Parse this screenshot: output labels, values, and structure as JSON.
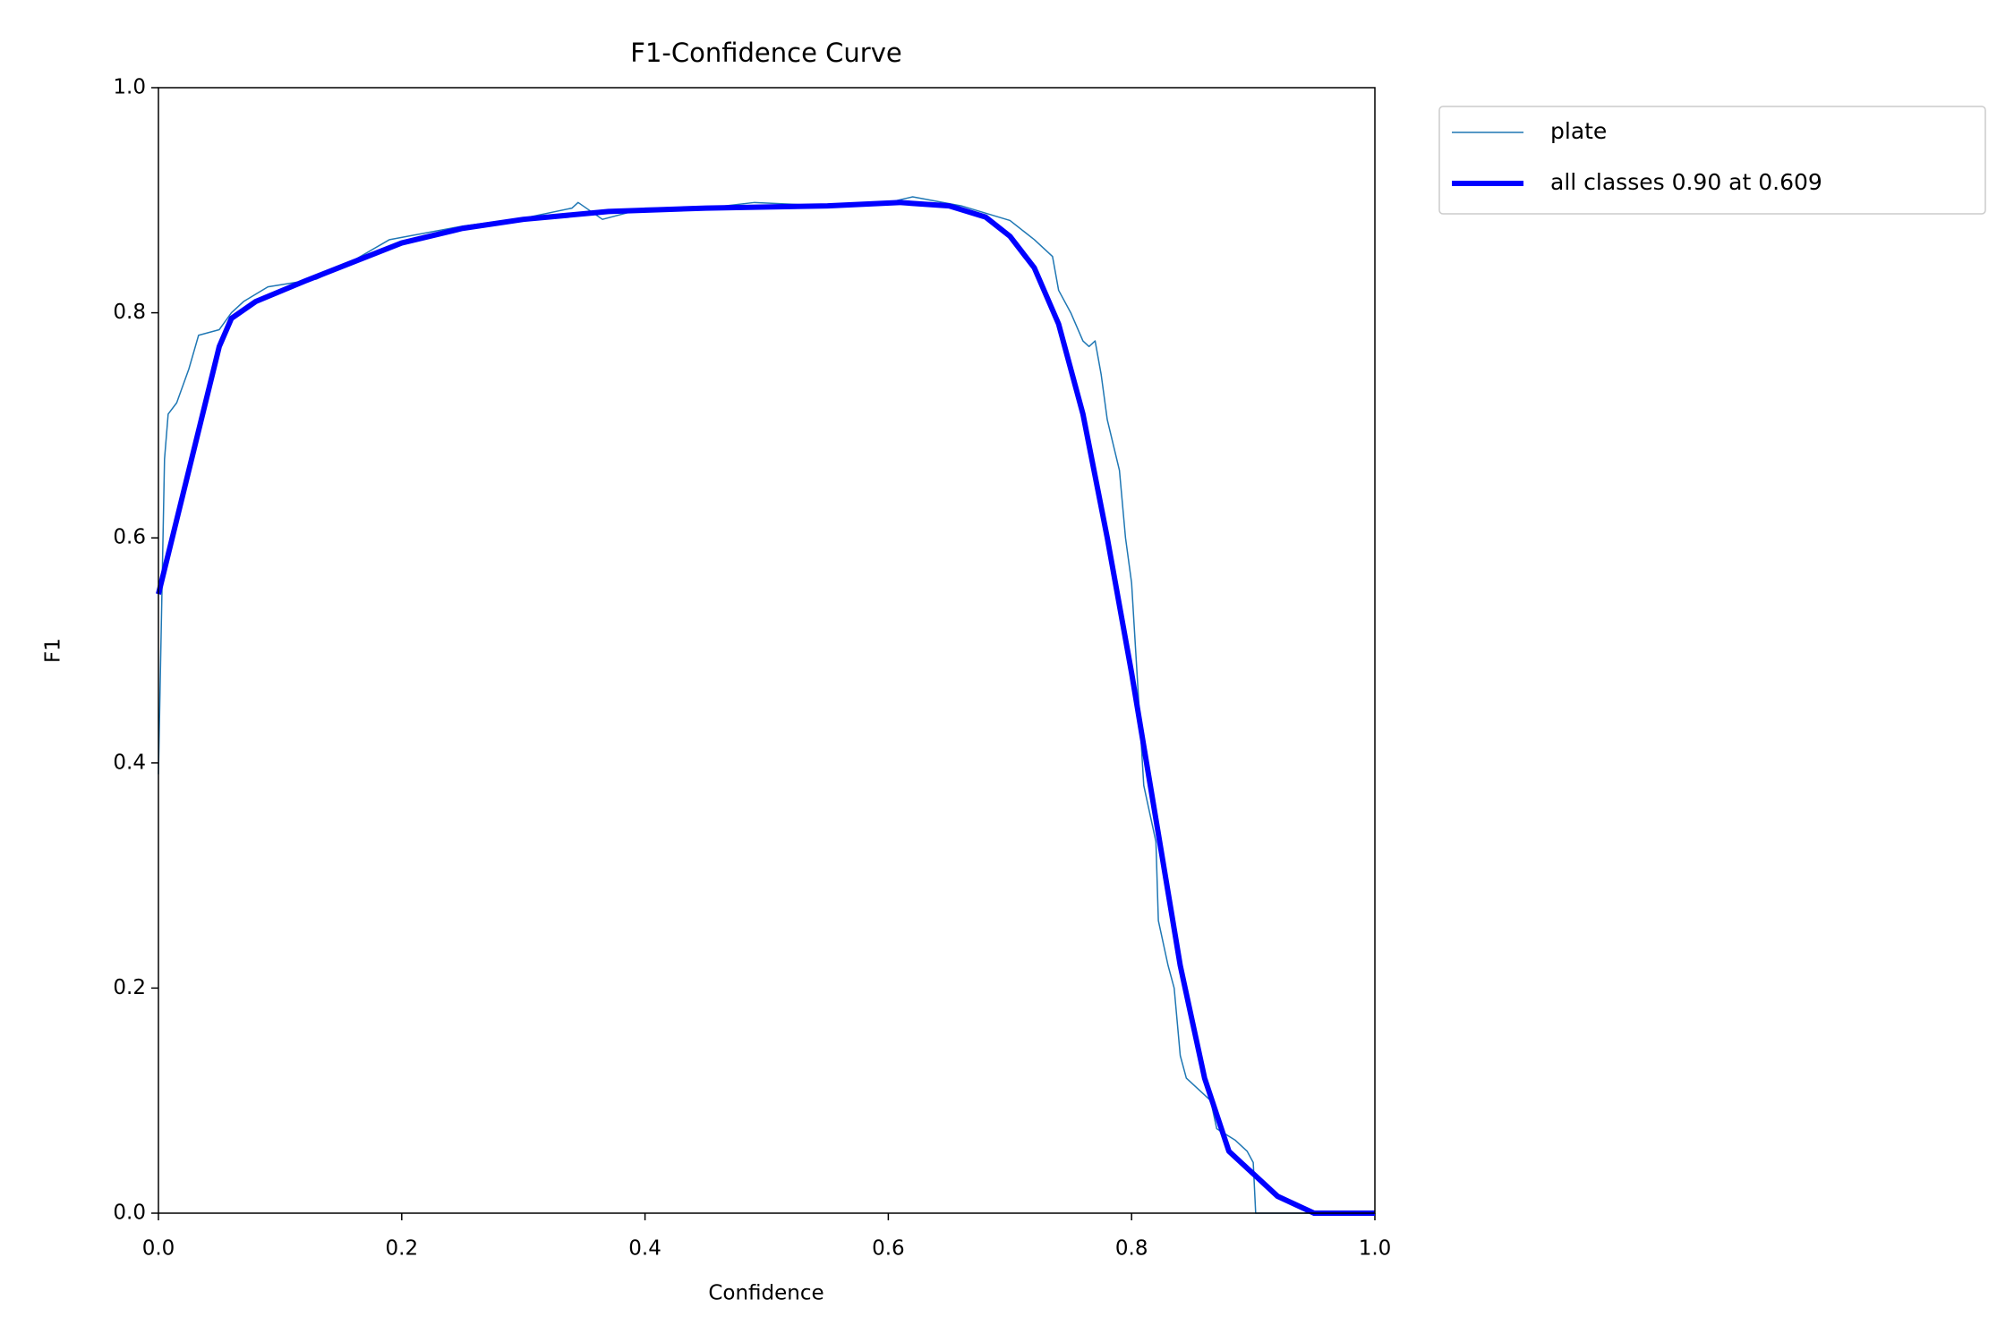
{
  "chart_data": {
    "type": "line",
    "title": "F1-Confidence Curve",
    "x_label": "Confidence",
    "y_label": "F1",
    "xlim": [
      0,
      1
    ],
    "ylim": [
      0,
      1
    ],
    "xticks": [
      {
        "value": 0,
        "label": "0.0"
      },
      0.2,
      0.4,
      0.6,
      0.8,
      {
        "value": 1,
        "label": "1.0"
      }
    ],
    "yticks": [
      {
        "value": 0,
        "label": "0.0"
      },
      0.2,
      0.4,
      0.6,
      0.8,
      {
        "value": 1,
        "label": "1.0"
      }
    ],
    "grid": false,
    "legend": "outside upper right",
    "series": [
      {
        "name": "plate",
        "color": "#1f77b4",
        "width": 1.5,
        "x": [
          0,
          0.005,
          0.008,
          0.015,
          0.025,
          0.033,
          0.05,
          0.06,
          0.07,
          0.09,
          0.13,
          0.15,
          0.19,
          0.25,
          0.3,
          0.34,
          0.345,
          0.365,
          0.4,
          0.45,
          0.49,
          0.55,
          0.6,
          0.62,
          0.66,
          0.7,
          0.72,
          0.735,
          0.74,
          0.75,
          0.76,
          0.765,
          0.77,
          0.775,
          0.78,
          0.79,
          0.795,
          0.8,
          0.805,
          0.81,
          0.82,
          0.822,
          0.83,
          0.835,
          0.84,
          0.845,
          0.865,
          0.87,
          0.885,
          0.895,
          0.9,
          0.902,
          1
        ],
        "values": [
          0.39,
          0.67,
          0.71,
          0.72,
          0.75,
          0.78,
          0.785,
          0.8,
          0.81,
          0.823,
          0.83,
          0.84,
          0.865,
          0.877,
          0.884,
          0.893,
          0.898,
          0.883,
          0.893,
          0.893,
          0.898,
          0.895,
          0.898,
          0.903,
          0.895,
          0.882,
          0.865,
          0.85,
          0.82,
          0.8,
          0.775,
          0.77,
          0.775,
          0.745,
          0.705,
          0.66,
          0.6,
          0.56,
          0.47,
          0.38,
          0.33,
          0.26,
          0.22,
          0.2,
          0.14,
          0.12,
          0.1,
          0.075,
          0.065,
          0.055,
          0.045,
          0,
          0
        ]
      },
      {
        "name": "all classes 0.90 at 0.609",
        "color": "#0000ff",
        "width": 6,
        "x": [
          0,
          0.05,
          0.06,
          0.08,
          0.12,
          0.2,
          0.25,
          0.3,
          0.37,
          0.45,
          0.55,
          0.609,
          0.65,
          0.68,
          0.7,
          0.72,
          0.74,
          0.76,
          0.78,
          0.8,
          0.82,
          0.84,
          0.86,
          0.88,
          0.9,
          0.92,
          0.95,
          1
        ],
        "values": [
          0.55,
          0.77,
          0.795,
          0.81,
          0.828,
          0.862,
          0.875,
          0.883,
          0.89,
          0.893,
          0.895,
          0.898,
          0.895,
          0.885,
          0.868,
          0.84,
          0.79,
          0.71,
          0.6,
          0.48,
          0.35,
          0.22,
          0.12,
          0.055,
          0.035,
          0.015,
          0,
          0
        ]
      }
    ]
  }
}
